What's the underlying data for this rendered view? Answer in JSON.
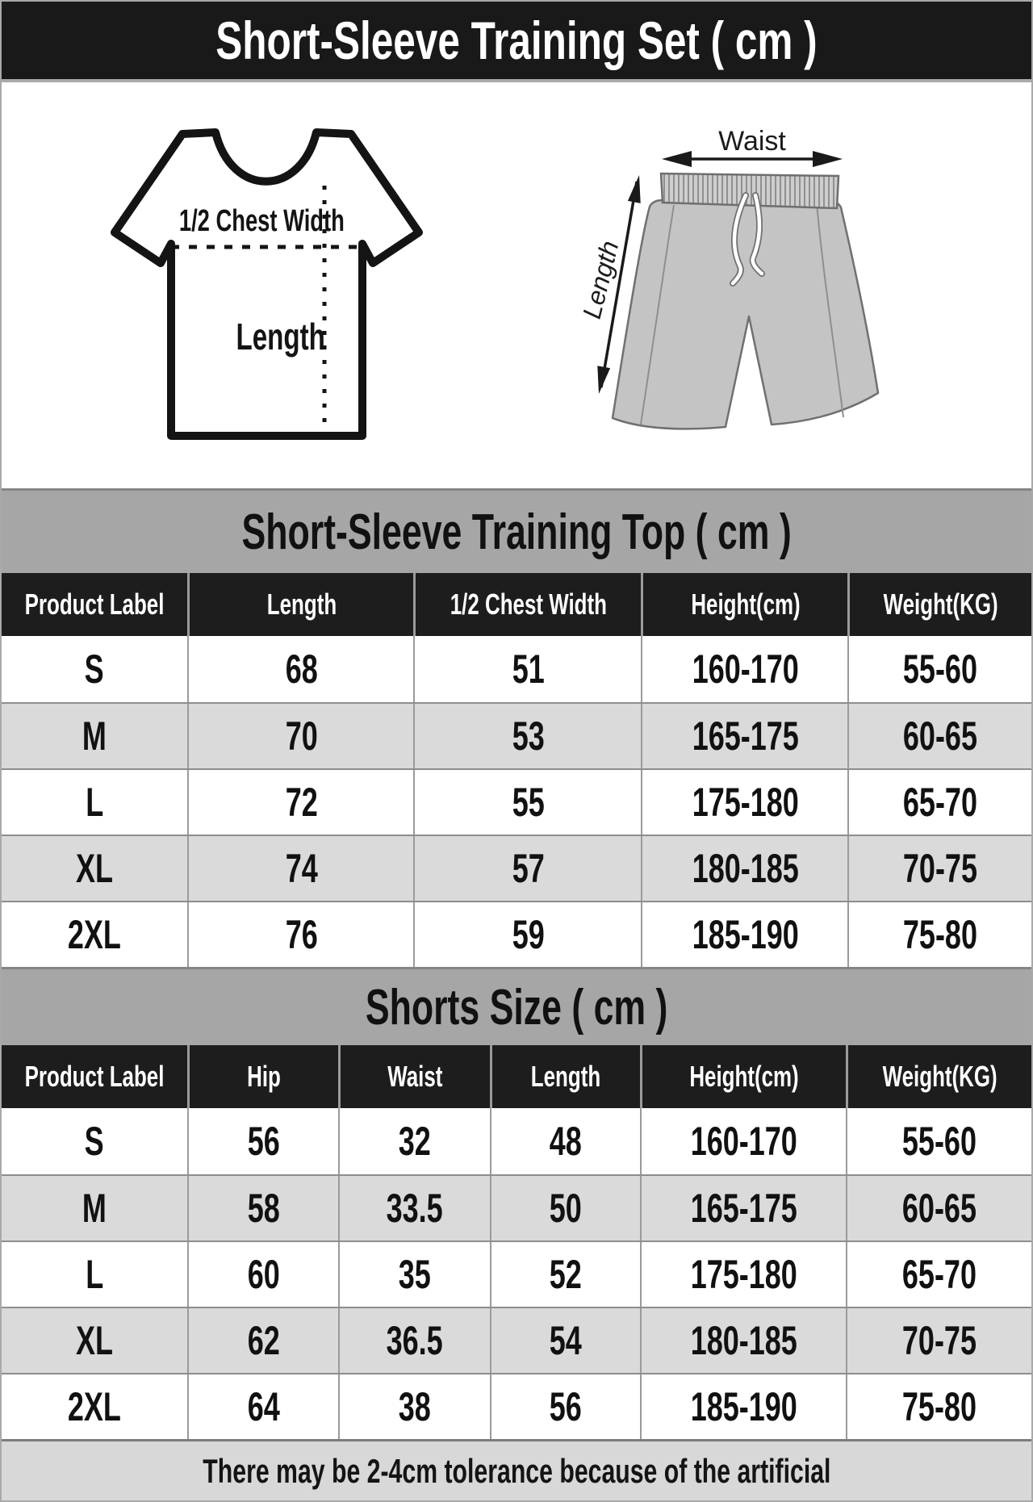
{
  "title": "Short-Sleeve Training Set ( cm )",
  "diagram": {
    "tshirt": {
      "chest_label": "1/2 Chest Width",
      "length_label": "Length"
    },
    "shorts": {
      "waist_label": "Waist",
      "length_label": "Length"
    }
  },
  "top_table": {
    "title": "Short-Sleeve Training Top ( cm )",
    "headers": [
      "Product Label",
      "Length",
      "1/2 Chest Width",
      "Height(cm)",
      "Weight(KG)"
    ],
    "rows": [
      [
        "S",
        "68",
        "51",
        "160-170",
        "55-60"
      ],
      [
        "M",
        "70",
        "53",
        "165-175",
        "60-65"
      ],
      [
        "L",
        "72",
        "55",
        "175-180",
        "65-70"
      ],
      [
        "XL",
        "74",
        "57",
        "180-185",
        "70-75"
      ],
      [
        "2XL",
        "76",
        "59",
        "185-190",
        "75-80"
      ]
    ]
  },
  "shorts_table": {
    "title": "Shorts Size ( cm )",
    "headers": [
      "Product Label",
      "Hip",
      "Waist",
      "Length",
      "Height(cm)",
      "Weight(KG)"
    ],
    "rows": [
      [
        "S",
        "56",
        "32",
        "48",
        "160-170",
        "55-60"
      ],
      [
        "M",
        "58",
        "33.5",
        "50",
        "165-175",
        "60-65"
      ],
      [
        "L",
        "60",
        "35",
        "52",
        "175-180",
        "65-70"
      ],
      [
        "XL",
        "62",
        "36.5",
        "54",
        "180-185",
        "70-75"
      ],
      [
        "2XL",
        "64",
        "38",
        "56",
        "185-190",
        "75-80"
      ]
    ]
  },
  "footer_note": "There may be 2-4cm tolerance because of the artificial",
  "colors": {
    "title_bg": "#191919",
    "table_header_bg": "#1d1d1d",
    "band_gray": "#a6a6a6",
    "row_alt_gray": "#dadada",
    "footer_gray": "#d8d8d8",
    "shorts_fill": "#c4c4c4",
    "outline_dark": "#141414"
  }
}
